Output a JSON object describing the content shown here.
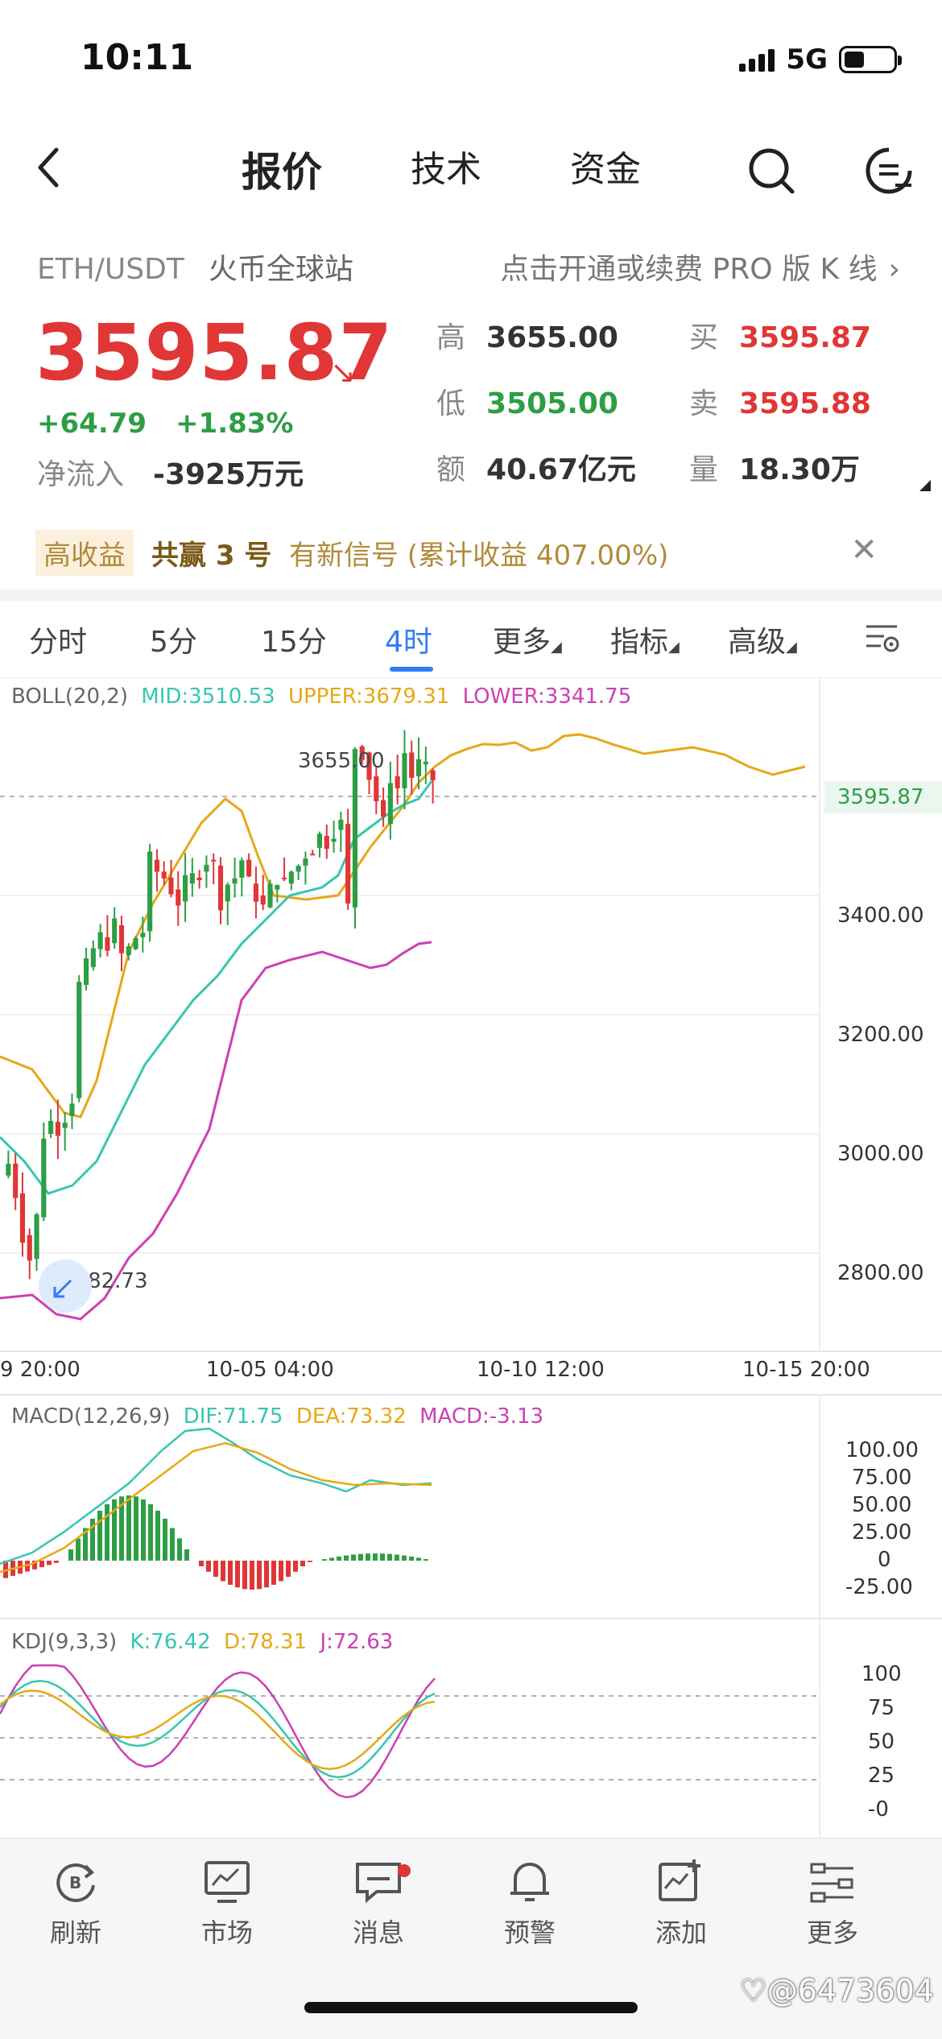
{
  "status_bar": {
    "time": "10:11",
    "network": "5G"
  },
  "nav": {
    "tabs": [
      "报价",
      "技术",
      "资金"
    ],
    "active_tab": "报价"
  },
  "header": {
    "pair": "ETH/USDT",
    "exchange": "火币全球站",
    "pro_link": "点击开通或续费 PRO 版 K 线",
    "last_price": "3595.87",
    "change": "+64.79",
    "change_pct": "+1.83%",
    "inflow_label": "净流入",
    "inflow_value": "-3925万元",
    "stats": {
      "high_label": "高",
      "high": "3655.00",
      "low_label": "低",
      "low": "3505.00",
      "amount_label": "额",
      "amount": "40.67亿元",
      "buy_label": "买",
      "buy": "3595.87",
      "sell_label": "卖",
      "sell": "3595.88",
      "volume_label": "量",
      "volume": "18.30万"
    }
  },
  "banner": {
    "badge": "高收益",
    "name": "共赢 3 号",
    "text": "有新信号 (累计收益 407.00%)"
  },
  "intervals": [
    "分时",
    "5分",
    "15分",
    "4时",
    "更多",
    "指标",
    "高级"
  ],
  "active_interval": "4时",
  "chart": {
    "boll": {
      "label": "BOLL(20,2)",
      "mid": "MID:3510.53",
      "upper": "UPPER:3679.31",
      "lower": "LOWER:3341.75"
    },
    "max_label": "3655.00",
    "min_label": "2782.73",
    "price_tag": "3595.87",
    "y_ticks": [
      "3400.00",
      "3200.00",
      "3000.00",
      "2800.00"
    ],
    "x_ticks": [
      "9 20:00",
      "10-05 04:00",
      "10-10 12:00",
      "10-15 20:00"
    ],
    "macd": {
      "label": "MACD(12,26,9)",
      "dif": "DIF:71.75",
      "dea": "DEA:73.32",
      "macd": "MACD:-3.13",
      "y_ticks": [
        "100.00",
        "75.00",
        "50.00",
        "25.00",
        "0",
        "-25.00"
      ]
    },
    "kdj": {
      "label": "KDJ(9,3,3)",
      "k": "K:76.42",
      "d": "D:78.31",
      "j": "J:72.63",
      "y_ticks": [
        "100",
        "75",
        "50",
        "25",
        "-0"
      ]
    },
    "colors": {
      "up": "#2e9e45",
      "down": "#e03636",
      "mid": "#35c7b0",
      "upper": "#e6a817",
      "lower": "#cc3fb3"
    }
  },
  "bottom_nav": [
    "刷新",
    "市场",
    "消息",
    "预警",
    "添加",
    "更多"
  ],
  "watermark": "@6473604"
}
